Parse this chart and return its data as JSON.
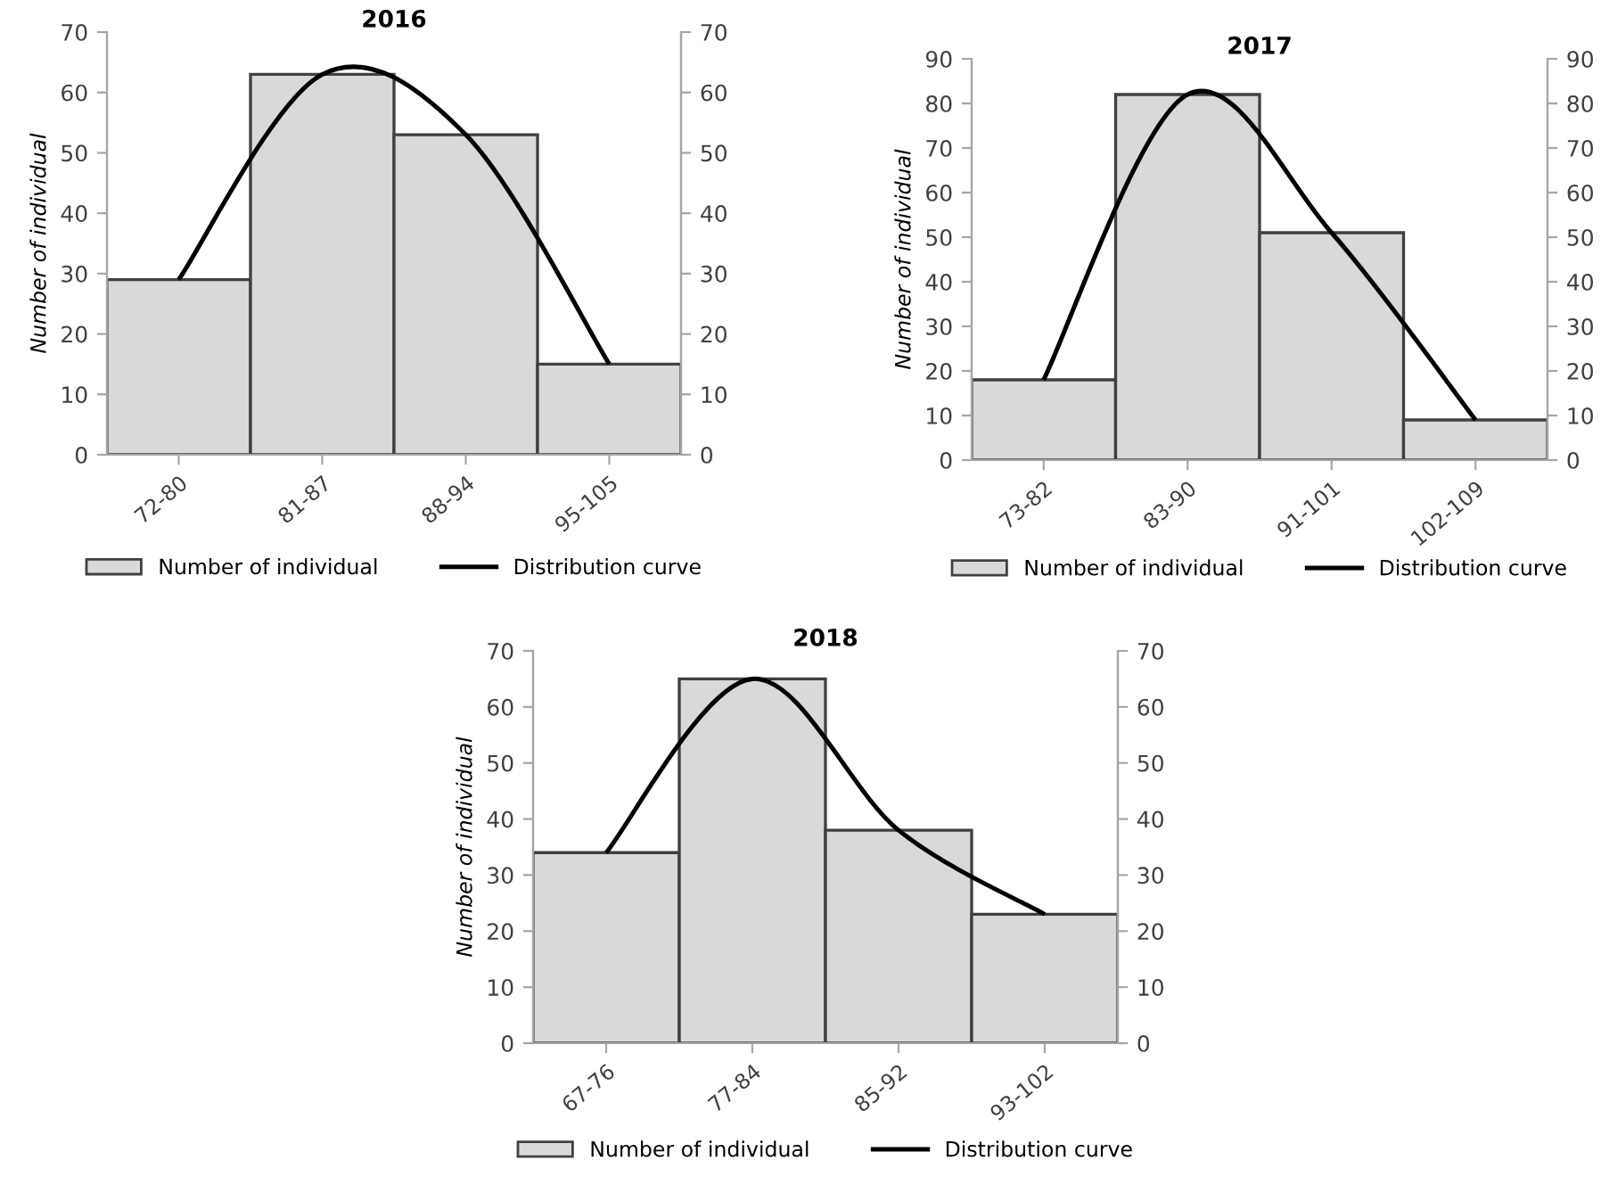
{
  "chart_data": [
    {
      "type": "bar",
      "title": "2016",
      "ylabel": "Number of individual",
      "categories": [
        "72-80",
        "81-87",
        "88-94",
        "95-105"
      ],
      "series": [
        {
          "name": "Number of individual",
          "color": "#d9d9d9",
          "values": [
            29,
            63,
            53,
            15
          ]
        },
        {
          "name": "Distribution curve",
          "type": "line",
          "color": "#000000",
          "values": [
            29,
            63,
            53,
            15
          ]
        }
      ],
      "ylim": [
        0,
        70
      ],
      "yticks": [
        0,
        10,
        20,
        30,
        40,
        50,
        60,
        70
      ],
      "y2lim": [
        0,
        70
      ],
      "y2ticks": [
        0,
        10,
        20,
        30,
        40,
        50,
        60,
        70
      ],
      "legend": "bottom",
      "grid": false
    },
    {
      "type": "bar",
      "title": "2017",
      "ylabel": "Number of individual",
      "categories": [
        "73-82",
        "83-90",
        "91-101",
        "102-109"
      ],
      "series": [
        {
          "name": "Number of individual",
          "color": "#d9d9d9",
          "values": [
            18,
            82,
            51,
            9
          ]
        },
        {
          "name": "Distribution curve",
          "type": "line",
          "color": "#000000",
          "values": [
            18,
            82,
            51,
            9
          ]
        }
      ],
      "ylim": [
        0,
        90
      ],
      "yticks": [
        0,
        10,
        20,
        30,
        40,
        50,
        60,
        70,
        80,
        90
      ],
      "y2lim": [
        0,
        90
      ],
      "y2ticks": [
        0,
        10,
        20,
        30,
        40,
        50,
        60,
        70,
        80,
        90
      ],
      "legend": "bottom",
      "grid": false
    },
    {
      "type": "bar",
      "title": "2018",
      "ylabel": "Number of individual",
      "categories": [
        "67-76",
        "77-84",
        "85-92",
        "93-102"
      ],
      "series": [
        {
          "name": "Number of individual",
          "color": "#d9d9d9",
          "values": [
            34,
            65,
            38,
            23
          ]
        },
        {
          "name": "Distribution curve",
          "type": "line",
          "color": "#000000",
          "values": [
            34,
            65,
            38,
            23
          ]
        }
      ],
      "ylim": [
        0,
        70
      ],
      "yticks": [
        0,
        10,
        20,
        30,
        40,
        50,
        60,
        70
      ],
      "y2lim": [
        0,
        70
      ],
      "y2ticks": [
        0,
        10,
        20,
        30,
        40,
        50,
        60,
        70
      ],
      "legend": "bottom",
      "grid": false
    }
  ]
}
